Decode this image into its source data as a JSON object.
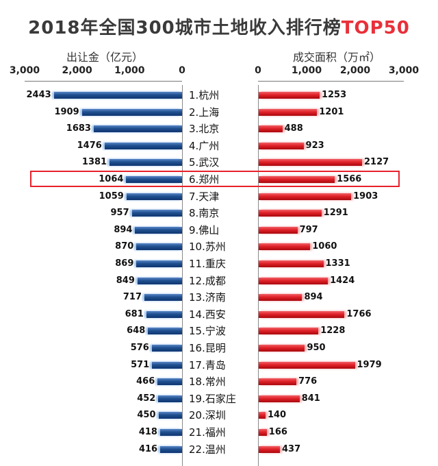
{
  "header": {
    "title_main": "2018年全国300城市土地收入排行榜",
    "title_highlight": "TOP50"
  },
  "colors": {
    "left_bar": "#1f4f8f",
    "left_bar_light": "#9fc4ee",
    "right_bar": "#e02128",
    "right_bar_light": "#f2a7a9",
    "highlight_box": "#e8212b"
  },
  "chart_data": {
    "type": "bar",
    "title": "2018年全国300城市土地收入排行榜TOP50",
    "categories": [
      "1.杭州",
      "2.上海",
      "3.北京",
      "4.广州",
      "5.武汉",
      "6.郑州",
      "7.天津",
      "8.南京",
      "9.佛山",
      "10.苏州",
      "11.重庆",
      "12.成都",
      "13.济南",
      "14.西安",
      "15.宁波",
      "16.昆明",
      "17.青岛",
      "18.常州",
      "19.石家庄",
      "20.深圳",
      "21.福州",
      "22.温州"
    ],
    "series": [
      {
        "name": "出让金（亿元）",
        "axis_label": "出让金（亿元）",
        "direction": "left",
        "ylim": [
          0,
          3000
        ],
        "ticks": [
          "3,000",
          "2,000",
          "1,000",
          "0"
        ],
        "tick_values": [
          3000,
          2000,
          1000,
          0
        ],
        "values": [
          2443,
          1909,
          1683,
          1476,
          1381,
          1064,
          1059,
          957,
          894,
          870,
          869,
          849,
          717,
          681,
          648,
          576,
          571,
          466,
          452,
          450,
          418,
          416
        ]
      },
      {
        "name": "成交面积（万㎡）",
        "axis_label": "成交面积（万㎡）",
        "direction": "right",
        "ylim": [
          0,
          3000
        ],
        "ticks": [
          "0",
          "1,000",
          "2,000",
          "3,000"
        ],
        "tick_values": [
          0,
          1000,
          2000,
          3000
        ],
        "values": [
          1253,
          1201,
          488,
          923,
          2127,
          1566,
          1903,
          1291,
          797,
          1060,
          1331,
          1424,
          894,
          1766,
          1228,
          950,
          1979,
          776,
          841,
          140,
          166,
          437
        ]
      }
    ],
    "highlighted_category": "6.郑州"
  }
}
